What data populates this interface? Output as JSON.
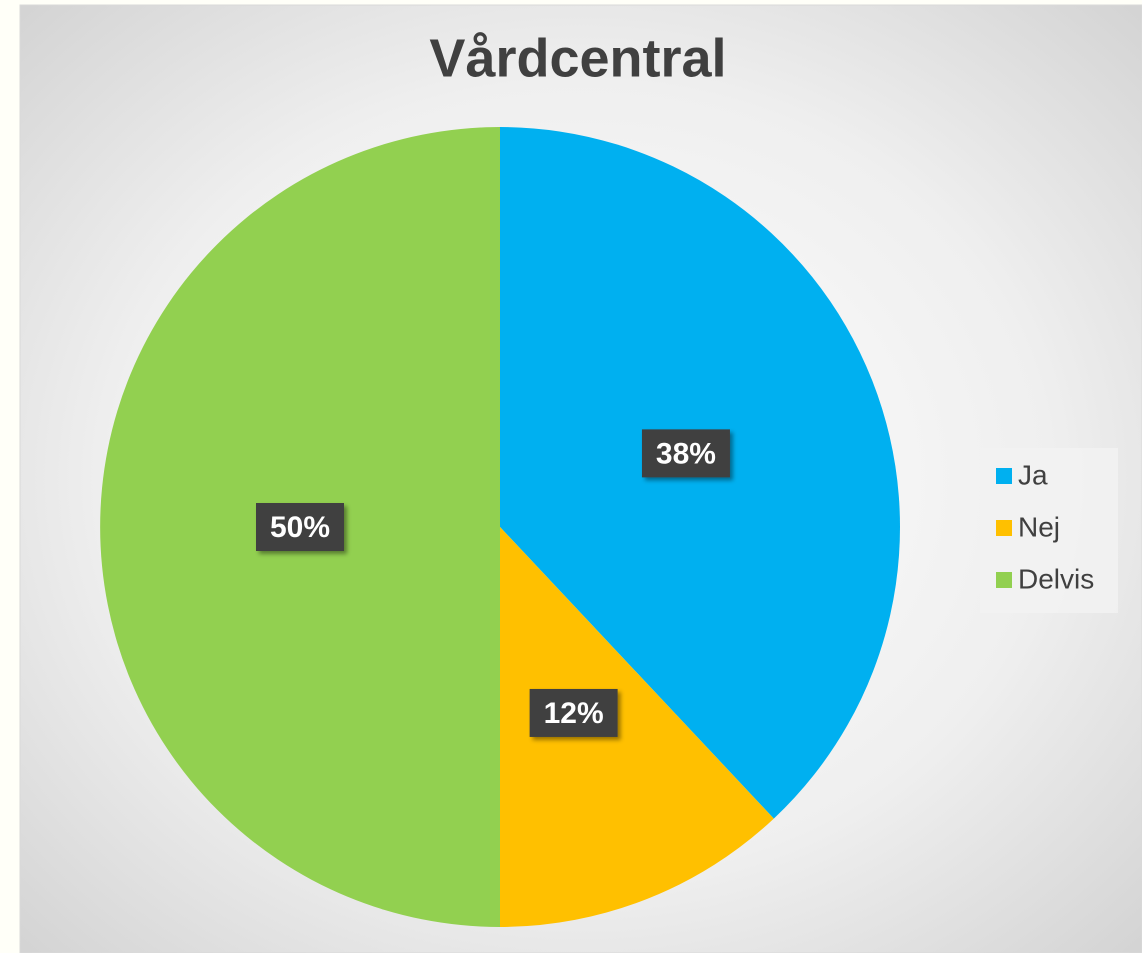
{
  "chart_data": {
    "type": "pie",
    "title": "Vårdcentral",
    "categories": [
      "Ja",
      "Nej",
      "Delvis"
    ],
    "values": [
      38,
      12,
      50
    ],
    "value_labels": [
      "38%",
      "12%",
      "50%"
    ],
    "colors": [
      "#00b0f0",
      "#ffc000",
      "#92d050"
    ],
    "legend": "right"
  }
}
